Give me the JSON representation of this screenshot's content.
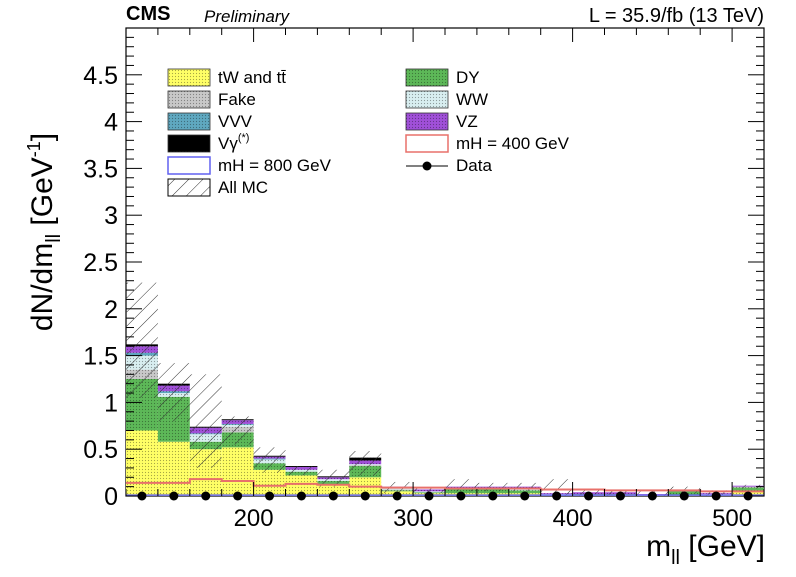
{
  "header": {
    "experiment": "CMS",
    "status": "Preliminary",
    "lumi": "L = 35.9/fb (13 TeV)"
  },
  "chart_data": {
    "type": "bar",
    "stacked": true,
    "xlabel": "m_ll [GeV]",
    "ylabel": "dN/dm_ll [GeV^-1]",
    "xlim": [
      120,
      520
    ],
    "ylim": [
      0,
      5.0
    ],
    "xticks": [
      200,
      300,
      400,
      500
    ],
    "yticks": [
      0,
      0.5,
      1,
      1.5,
      2,
      2.5,
      3,
      3.5,
      4,
      4.5
    ],
    "bin_edges": [
      120,
      140,
      160,
      180,
      200,
      220,
      240,
      260,
      280,
      300,
      320,
      340,
      360,
      380,
      400,
      420,
      440,
      460,
      480,
      500,
      520
    ],
    "series": [
      {
        "name": "tW and tt̄",
        "color": "#ffff66",
        "values": [
          0.7,
          0.58,
          0.5,
          0.52,
          0.28,
          0.22,
          0.12,
          0.2,
          0.05,
          0.03,
          0.03,
          0.03,
          0.03,
          0.01,
          0.01,
          0.01,
          0.01,
          0.01,
          0.01,
          0.05
        ]
      },
      {
        "name": "DY",
        "color": "#5db858",
        "values": [
          0.55,
          0.48,
          0.08,
          0.16,
          0.07,
          0.04,
          0.04,
          0.12,
          0.01,
          0.01,
          0.04,
          0.04,
          0.03,
          0.0,
          0.01,
          0.01,
          0.0,
          0.04,
          0.0,
          0.04
        ]
      },
      {
        "name": "Fake",
        "color": "#c8c8c8",
        "values": [
          0.1,
          0.0,
          0.0,
          0.06,
          0.0,
          0.0,
          0.0,
          0.01,
          0.01,
          0.0,
          0.0,
          0.0,
          0.0,
          0.0,
          0.0,
          0.0,
          0.0,
          0.0,
          0.0,
          0.01
        ]
      },
      {
        "name": "WW",
        "color": "#d8eef0",
        "values": [
          0.15,
          0.04,
          0.08,
          0.02,
          0.04,
          0.02,
          0.02,
          0.01,
          0.02,
          0.01,
          0.01,
          0.01,
          0.01,
          0.01,
          0.0,
          0.0,
          0.0,
          0.0,
          0.01,
          0.0
        ]
      },
      {
        "name": "VVV",
        "color": "#5fa8c0",
        "values": [
          0.03,
          0.02,
          0.01,
          0.01,
          0.01,
          0.0,
          0.0,
          0.0,
          0.0,
          0.0,
          0.0,
          0.0,
          0.0,
          0.0,
          0.0,
          0.0,
          0.0,
          0.0,
          0.0,
          0.0
        ]
      },
      {
        "name": "VZ",
        "color": "#a050d8",
        "values": [
          0.07,
          0.06,
          0.06,
          0.04,
          0.02,
          0.03,
          0.02,
          0.04,
          0.01,
          0.02,
          0.02,
          0.02,
          0.03,
          0.01,
          0.02,
          0.02,
          0.01,
          0.01,
          0.01,
          0.01
        ]
      },
      {
        "name": "Vγ(*)",
        "color": "#000000",
        "values": [
          0.02,
          0.02,
          0.01,
          0.01,
          0.01,
          0.01,
          0.01,
          0.03,
          0.0,
          0.0,
          0.0,
          0.0,
          0.0,
          0.0,
          0.0,
          0.0,
          0.0,
          0.0,
          0.0,
          0.0
        ]
      }
    ],
    "signal_400": {
      "name": "mH = 400 GeV",
      "color": "#e8706a",
      "values": [
        0.14,
        0.14,
        0.18,
        0.16,
        0.11,
        0.13,
        0.12,
        0.1,
        0.09,
        0.09,
        0.08,
        0.08,
        0.08,
        0.07,
        0.07,
        0.06,
        0.06,
        0.06,
        0.05,
        0.05
      ]
    },
    "signal_800": {
      "name": "mH = 800 GeV",
      "color": "#6060f0",
      "values": [
        0.01,
        0.01,
        0.01,
        0.01,
        0.01,
        0.01,
        0.01,
        0.01,
        0.01,
        0.01,
        0.01,
        0.01,
        0.01,
        0.01,
        0.01,
        0.01,
        0.01,
        0.01,
        0.01,
        0.01
      ]
    },
    "all_mc_band": {
      "name": "All MC",
      "low": [
        1.05,
        0.8,
        0.3,
        0.55,
        0.25,
        0.22,
        0.1,
        0.22,
        0.03,
        0.03,
        0.05,
        0.05,
        0.05,
        0.0,
        0.0,
        0.0,
        0.0,
        0.03,
        0.0,
        0.08
      ],
      "high": [
        2.28,
        1.42,
        1.3,
        0.85,
        0.52,
        0.32,
        0.28,
        0.48,
        0.15,
        0.08,
        0.18,
        0.14,
        0.14,
        0.18,
        0.06,
        0.06,
        0.06,
        0.1,
        0.06,
        0.12
      ]
    },
    "data": {
      "name": "Data",
      "x": [
        130,
        150,
        170,
        190,
        210,
        230,
        250,
        270,
        290,
        310,
        330,
        350,
        370,
        390,
        410,
        430,
        450,
        470,
        490,
        510
      ],
      "y": [
        0,
        0,
        0,
        0,
        0,
        0,
        0,
        0,
        0,
        0,
        0,
        0,
        0,
        0,
        0,
        0,
        0,
        0,
        0,
        0
      ]
    },
    "legend": {
      "left": [
        "tW and tt̄",
        "Fake",
        "VVV",
        "Vγ(*)",
        "mH = 800 GeV",
        "All MC"
      ],
      "right": [
        "DY",
        "WW",
        "VZ",
        "mH = 400 GeV",
        "Data"
      ]
    },
    "legend_placement": "top"
  }
}
